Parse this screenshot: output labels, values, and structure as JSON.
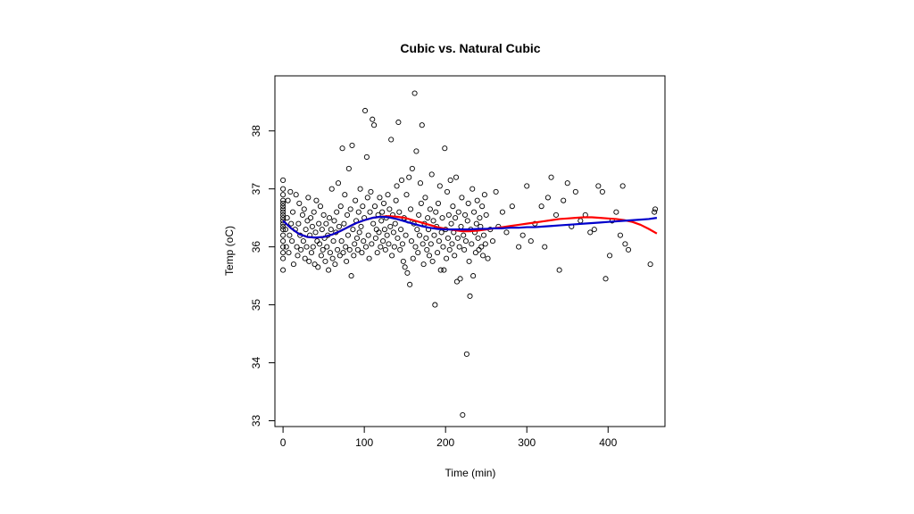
{
  "chart_data": {
    "type": "scatter",
    "title": "Cubic vs. Natural Cubic",
    "xlabel": "Time (min)",
    "ylabel": "Temp (oC)",
    "xlim": [
      -10,
      470
    ],
    "ylim": [
      32.9,
      38.95
    ],
    "xticks": [
      "0",
      "100",
      "200",
      "300",
      "400"
    ],
    "yticks": [
      "33",
      "34",
      "35",
      "36",
      "37",
      "38"
    ],
    "grid": false,
    "legend": "none",
    "points": [
      [
        0,
        35.6
      ],
      [
        0,
        35.8
      ],
      [
        0,
        35.9
      ],
      [
        0,
        36.0
      ],
      [
        0,
        36.1
      ],
      [
        0,
        36.2
      ],
      [
        0,
        36.3
      ],
      [
        0,
        36.4
      ],
      [
        0,
        36.5
      ],
      [
        0,
        36.6
      ],
      [
        0,
        36.7
      ],
      [
        0,
        36.8
      ],
      [
        0,
        36.9
      ],
      [
        0,
        37.0
      ],
      [
        0,
        37.15
      ],
      [
        0,
        36.75
      ],
      [
        0,
        36.55
      ],
      [
        0,
        36.45
      ],
      [
        0,
        36.35
      ],
      [
        0,
        36.65
      ],
      [
        3,
        36.3
      ],
      [
        4,
        36.0
      ],
      [
        5,
        36.5
      ],
      [
        6,
        36.8
      ],
      [
        7,
        35.9
      ],
      [
        8,
        36.2
      ],
      [
        9,
        36.95
      ],
      [
        10,
        36.4
      ],
      [
        11,
        36.1
      ],
      [
        12,
        36.6
      ],
      [
        13,
        35.7
      ],
      [
        15,
        36.3
      ],
      [
        16,
        36.9
      ],
      [
        17,
        36.0
      ],
      [
        18,
        35.85
      ],
      [
        19,
        36.4
      ],
      [
        20,
        36.75
      ],
      [
        21,
        36.2
      ],
      [
        22,
        35.95
      ],
      [
        24,
        36.55
      ],
      [
        25,
        36.1
      ],
      [
        26,
        36.65
      ],
      [
        27,
        35.8
      ],
      [
        28,
        36.3
      ],
      [
        29,
        36.0
      ],
      [
        30,
        36.45
      ],
      [
        31,
        36.85
      ],
      [
        32,
        35.75
      ],
      [
        33,
        36.2
      ],
      [
        34,
        36.5
      ],
      [
        35,
        35.9
      ],
      [
        36,
        36.35
      ],
      [
        37,
        36.0
      ],
      [
        38,
        36.6
      ],
      [
        39,
        35.7
      ],
      [
        40,
        36.25
      ],
      [
        41,
        36.8
      ],
      [
        42,
        36.1
      ],
      [
        43,
        35.65
      ],
      [
        44,
        36.4
      ],
      [
        45,
        36.05
      ],
      [
        46,
        36.7
      ],
      [
        47,
        35.85
      ],
      [
        48,
        36.3
      ],
      [
        49,
        35.95
      ],
      [
        50,
        36.55
      ],
      [
        51,
        36.15
      ],
      [
        52,
        35.75
      ],
      [
        53,
        36.4
      ],
      [
        54,
        36.0
      ],
      [
        55,
        36.2
      ],
      [
        56,
        35.6
      ],
      [
        57,
        36.5
      ],
      [
        58,
        35.9
      ],
      [
        59,
        36.3
      ],
      [
        60,
        37.0
      ],
      [
        61,
        35.8
      ],
      [
        62,
        36.1
      ],
      [
        63,
        36.45
      ],
      [
        64,
        35.7
      ],
      [
        65,
        36.25
      ],
      [
        66,
        36.6
      ],
      [
        67,
        35.95
      ],
      [
        68,
        37.1
      ],
      [
        69,
        36.35
      ],
      [
        70,
        35.85
      ],
      [
        71,
        36.7
      ],
      [
        72,
        36.1
      ],
      [
        73,
        37.7
      ],
      [
        74,
        35.9
      ],
      [
        75,
        36.4
      ],
      [
        76,
        36.9
      ],
      [
        77,
        36.0
      ],
      [
        78,
        35.75
      ],
      [
        79,
        36.55
      ],
      [
        80,
        36.2
      ],
      [
        81,
        37.35
      ],
      [
        82,
        35.95
      ],
      [
        83,
        36.65
      ],
      [
        84,
        35.5
      ],
      [
        85,
        37.75
      ],
      [
        86,
        36.3
      ],
      [
        87,
        35.85
      ],
      [
        88,
        36.05
      ],
      [
        89,
        36.8
      ],
      [
        90,
        36.45
      ],
      [
        91,
        36.15
      ],
      [
        92,
        35.95
      ],
      [
        93,
        36.6
      ],
      [
        94,
        36.25
      ],
      [
        95,
        37.0
      ],
      [
        96,
        36.35
      ],
      [
        97,
        35.9
      ],
      [
        98,
        36.7
      ],
      [
        99,
        36.1
      ],
      [
        100,
        36.5
      ],
      [
        101,
        38.35
      ],
      [
        102,
        36.0
      ],
      [
        103,
        37.55
      ],
      [
        104,
        36.85
      ],
      [
        105,
        36.2
      ],
      [
        106,
        35.8
      ],
      [
        107,
        36.6
      ],
      [
        108,
        36.95
      ],
      [
        109,
        36.05
      ],
      [
        110,
        38.2
      ],
      [
        111,
        36.4
      ],
      [
        112,
        38.1
      ],
      [
        113,
        36.7
      ],
      [
        114,
        36.15
      ],
      [
        115,
        36.3
      ],
      [
        116,
        35.9
      ],
      [
        117,
        36.55
      ],
      [
        118,
        36.25
      ],
      [
        119,
        36.85
      ],
      [
        120,
        36.0
      ],
      [
        121,
        36.45
      ],
      [
        122,
        36.6
      ],
      [
        123,
        36.1
      ],
      [
        124,
        36.75
      ],
      [
        125,
        36.3
      ],
      [
        126,
        35.95
      ],
      [
        127,
        36.5
      ],
      [
        128,
        36.2
      ],
      [
        129,
        36.9
      ],
      [
        130,
        36.05
      ],
      [
        131,
        36.65
      ],
      [
        132,
        36.35
      ],
      [
        133,
        37.85
      ],
      [
        134,
        35.85
      ],
      [
        135,
        36.55
      ],
      [
        136,
        36.25
      ],
      [
        137,
        36.0
      ],
      [
        138,
        36.4
      ],
      [
        139,
        36.8
      ],
      [
        140,
        37.05
      ],
      [
        141,
        36.15
      ],
      [
        142,
        38.15
      ],
      [
        143,
        36.6
      ],
      [
        144,
        35.95
      ],
      [
        145,
        36.3
      ],
      [
        146,
        37.15
      ],
      [
        147,
        36.05
      ],
      [
        148,
        35.75
      ],
      [
        149,
        36.5
      ],
      [
        150,
        35.65
      ],
      [
        151,
        36.2
      ],
      [
        152,
        36.9
      ],
      [
        153,
        35.55
      ],
      [
        154,
        36.45
      ],
      [
        155,
        37.2
      ],
      [
        156,
        35.35
      ],
      [
        157,
        36.65
      ],
      [
        158,
        36.1
      ],
      [
        159,
        37.35
      ],
      [
        160,
        35.8
      ],
      [
        161,
        36.4
      ],
      [
        162,
        38.65
      ],
      [
        163,
        36.0
      ],
      [
        164,
        37.65
      ],
      [
        165,
        36.3
      ],
      [
        166,
        35.9
      ],
      [
        167,
        36.55
      ],
      [
        168,
        36.2
      ],
      [
        169,
        37.1
      ],
      [
        170,
        36.75
      ],
      [
        171,
        38.1
      ],
      [
        172,
        36.05
      ],
      [
        173,
        35.7
      ],
      [
        174,
        36.4
      ],
      [
        175,
        36.85
      ],
      [
        176,
        36.15
      ],
      [
        177,
        35.95
      ],
      [
        178,
        36.5
      ],
      [
        179,
        36.3
      ],
      [
        180,
        35.85
      ],
      [
        181,
        36.65
      ],
      [
        182,
        36.05
      ],
      [
        183,
        37.25
      ],
      [
        184,
        35.75
      ],
      [
        185,
        36.45
      ],
      [
        186,
        36.2
      ],
      [
        187,
        35.0
      ],
      [
        188,
        36.6
      ],
      [
        189,
        36.35
      ],
      [
        190,
        35.9
      ],
      [
        191,
        36.75
      ],
      [
        192,
        36.1
      ],
      [
        193,
        37.05
      ],
      [
        194,
        35.6
      ],
      [
        195,
        36.25
      ],
      [
        196,
        36.5
      ],
      [
        197,
        36.0
      ],
      [
        198,
        35.6
      ],
      [
        199,
        37.7
      ],
      [
        200,
        36.3
      ],
      [
        201,
        35.8
      ],
      [
        202,
        36.95
      ],
      [
        203,
        36.15
      ],
      [
        204,
        36.55
      ],
      [
        205,
        35.95
      ],
      [
        206,
        37.15
      ],
      [
        207,
        36.4
      ],
      [
        208,
        36.05
      ],
      [
        209,
        36.7
      ],
      [
        210,
        36.25
      ],
      [
        211,
        35.85
      ],
      [
        212,
        36.5
      ],
      [
        213,
        37.2
      ],
      [
        214,
        35.4
      ],
      [
        215,
        36.15
      ],
      [
        216,
        36.6
      ],
      [
        217,
        36.0
      ],
      [
        218,
        35.45
      ],
      [
        219,
        36.35
      ],
      [
        220,
        36.85
      ],
      [
        221,
        33.1
      ],
      [
        222,
        36.2
      ],
      [
        223,
        35.95
      ],
      [
        224,
        36.55
      ],
      [
        225,
        36.1
      ],
      [
        226,
        34.15
      ],
      [
        227,
        36.45
      ],
      [
        228,
        36.75
      ],
      [
        229,
        35.75
      ],
      [
        230,
        35.15
      ],
      [
        231,
        36.3
      ],
      [
        232,
        36.05
      ],
      [
        233,
        37.0
      ],
      [
        234,
        35.5
      ],
      [
        235,
        36.6
      ],
      [
        236,
        36.25
      ],
      [
        237,
        35.9
      ],
      [
        238,
        36.4
      ],
      [
        239,
        36.8
      ],
      [
        240,
        36.15
      ],
      [
        241,
        35.95
      ],
      [
        242,
        36.5
      ],
      [
        243,
        36.35
      ],
      [
        244,
        36.0
      ],
      [
        245,
        36.7
      ],
      [
        246,
        35.85
      ],
      [
        247,
        36.2
      ],
      [
        248,
        36.9
      ],
      [
        249,
        36.05
      ],
      [
        250,
        36.55
      ],
      [
        252,
        35.8
      ],
      [
        255,
        36.3
      ],
      [
        258,
        36.1
      ],
      [
        262,
        36.95
      ],
      [
        265,
        36.35
      ],
      [
        270,
        36.6
      ],
      [
        275,
        36.25
      ],
      [
        282,
        36.7
      ],
      [
        290,
        36.0
      ],
      [
        295,
        36.2
      ],
      [
        300,
        37.05
      ],
      [
        305,
        36.1
      ],
      [
        310,
        36.4
      ],
      [
        318,
        36.7
      ],
      [
        322,
        36.0
      ],
      [
        326,
        36.85
      ],
      [
        330,
        37.2
      ],
      [
        336,
        36.55
      ],
      [
        340,
        35.6
      ],
      [
        345,
        36.8
      ],
      [
        350,
        37.1
      ],
      [
        355,
        36.35
      ],
      [
        360,
        36.95
      ],
      [
        366,
        36.45
      ],
      [
        372,
        36.55
      ],
      [
        378,
        36.25
      ],
      [
        383,
        36.3
      ],
      [
        388,
        37.05
      ],
      [
        393,
        36.95
      ],
      [
        397,
        35.45
      ],
      [
        402,
        35.85
      ],
      [
        405,
        36.45
      ],
      [
        410,
        36.6
      ],
      [
        415,
        36.2
      ],
      [
        418,
        37.05
      ],
      [
        421,
        36.05
      ],
      [
        425,
        35.95
      ],
      [
        452,
        35.7
      ],
      [
        457,
        36.6
      ],
      [
        458,
        36.65
      ]
    ],
    "series": [
      {
        "name": "",
        "type": "curve",
        "color": "#ff0000",
        "x": [
          0,
          10,
          20,
          30,
          40,
          50,
          60,
          70,
          80,
          90,
          100,
          110,
          120,
          130,
          140,
          150,
          160,
          170,
          180,
          190,
          200,
          210,
          220,
          230,
          240,
          250,
          260,
          270,
          280,
          290,
          300,
          310,
          320,
          330,
          340,
          350,
          360,
          370,
          380,
          390,
          400,
          410,
          420,
          430,
          440,
          450,
          460
        ],
        "y": [
          36.45,
          36.32,
          36.22,
          36.17,
          36.16,
          36.17,
          36.21,
          36.27,
          36.34,
          36.41,
          36.46,
          36.5,
          36.52,
          36.53,
          36.52,
          36.5,
          36.46,
          36.42,
          36.38,
          36.34,
          36.31,
          36.29,
          36.27,
          36.27,
          36.28,
          36.3,
          36.32,
          36.34,
          36.36,
          36.38,
          36.4,
          36.42,
          36.44,
          36.46,
          36.48,
          36.49,
          36.5,
          36.51,
          36.51,
          36.5,
          36.49,
          36.48,
          36.46,
          36.43,
          36.38,
          36.31,
          36.23
        ]
      },
      {
        "name": "",
        "type": "curve",
        "color": "#0000cc",
        "x": [
          0,
          10,
          20,
          30,
          40,
          50,
          60,
          70,
          80,
          90,
          100,
          110,
          120,
          130,
          140,
          150,
          160,
          170,
          180,
          190,
          200,
          210,
          220,
          230,
          240,
          250,
          260,
          270,
          280,
          290,
          300,
          310,
          320,
          330,
          340,
          350,
          360,
          370,
          380,
          390,
          400,
          410,
          420,
          430,
          440,
          450,
          460
        ],
        "y": [
          36.45,
          36.32,
          36.22,
          36.17,
          36.16,
          36.17,
          36.21,
          36.27,
          36.34,
          36.41,
          36.46,
          36.5,
          36.52,
          36.51,
          36.48,
          36.44,
          36.4,
          36.36,
          36.33,
          36.31,
          36.3,
          36.3,
          36.3,
          36.3,
          36.31,
          36.31,
          36.32,
          36.32,
          36.33,
          36.33,
          36.34,
          36.34,
          36.35,
          36.36,
          36.37,
          36.38,
          36.39,
          36.4,
          36.41,
          36.42,
          36.43,
          36.44,
          36.45,
          36.46,
          36.47,
          36.48,
          36.5
        ]
      }
    ]
  }
}
